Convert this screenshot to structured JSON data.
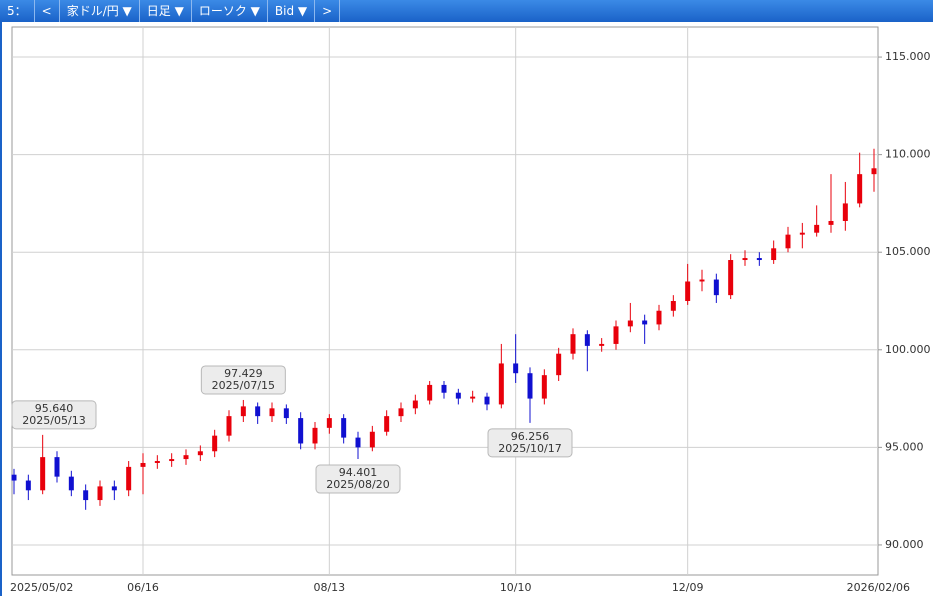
{
  "toolbar": [
    "5：",
    "<",
    "家ドル/円 ▼",
    "日足 ▼",
    "ローソク ▼",
    "Bid ▼",
    ">"
  ],
  "chart_data": {
    "type": "candlestick",
    "categories": [
      "2025/05/02",
      null,
      null,
      null,
      null,
      null,
      null,
      null,
      null,
      "06/16",
      null,
      null,
      null,
      null,
      null,
      null,
      null,
      null,
      null,
      null,
      null,
      null,
      "08/13",
      null,
      null,
      null,
      null,
      null,
      null,
      null,
      null,
      null,
      null,
      null,
      null,
      "10/10",
      null,
      null,
      null,
      null,
      null,
      null,
      null,
      null,
      null,
      null,
      null,
      "12/09",
      null,
      null,
      null,
      null,
      null,
      null,
      null,
      null,
      null,
      null,
      null,
      null,
      "2026/02/06"
    ],
    "open": [
      93.6,
      93.3,
      92.8,
      94.5,
      93.5,
      92.8,
      92.3,
      93.0,
      92.8,
      94.0,
      94.2,
      94.3,
      94.4,
      94.6,
      94.8,
      95.6,
      96.6,
      97.1,
      96.6,
      97.0,
      96.5,
      95.2,
      96.0,
      96.5,
      95.5,
      95.0,
      95.8,
      96.6,
      97.0,
      97.4,
      98.2,
      97.8,
      97.5,
      97.6,
      97.2,
      99.3,
      98.8,
      97.5,
      98.7,
      99.8,
      100.8,
      100.2,
      100.3,
      101.2,
      101.5,
      101.3,
      102.0,
      102.5,
      103.5,
      103.6,
      102.8,
      104.6,
      104.7,
      104.6,
      105.2,
      105.9,
      106.0,
      106.4,
      106.6,
      107.5,
      109.0
    ],
    "high": [
      93.9,
      93.6,
      95.64,
      94.8,
      93.8,
      93.1,
      93.3,
      93.3,
      94.3,
      94.7,
      94.6,
      94.7,
      94.9,
      95.1,
      95.9,
      96.9,
      97.429,
      97.3,
      97.3,
      97.2,
      96.8,
      96.3,
      96.7,
      96.7,
      95.8,
      96.1,
      96.9,
      97.3,
      97.7,
      98.4,
      98.4,
      98.0,
      97.9,
      97.8,
      100.3,
      100.8,
      99.1,
      99.0,
      100.1,
      101.1,
      101.0,
      100.6,
      101.5,
      102.4,
      101.8,
      102.3,
      102.8,
      104.4,
      104.1,
      103.9,
      104.9,
      105.1,
      105.0,
      105.6,
      106.3,
      106.5,
      107.4,
      109.0,
      108.6,
      110.1,
      110.3
    ],
    "low": [
      92.6,
      92.3,
      92.6,
      93.2,
      92.5,
      91.8,
      92.0,
      92.3,
      92.5,
      92.6,
      93.9,
      94.0,
      94.1,
      94.3,
      94.5,
      95.3,
      96.3,
      96.2,
      96.3,
      96.2,
      94.9,
      94.9,
      95.7,
      95.2,
      94.401,
      94.8,
      95.6,
      96.3,
      96.7,
      97.2,
      97.5,
      97.2,
      97.3,
      96.9,
      97.0,
      98.3,
      96.256,
      97.2,
      98.4,
      99.5,
      98.9,
      99.9,
      100.0,
      100.9,
      100.3,
      101.0,
      101.7,
      102.3,
      103.0,
      102.4,
      102.6,
      104.3,
      104.3,
      104.4,
      105.0,
      105.2,
      105.8,
      106.0,
      106.1,
      107.3,
      108.1
    ],
    "close": [
      93.3,
      92.8,
      94.5,
      93.5,
      92.8,
      92.3,
      93.0,
      92.8,
      94.0,
      94.2,
      94.3,
      94.4,
      94.6,
      94.8,
      95.6,
      96.6,
      97.1,
      96.6,
      97.0,
      96.5,
      95.2,
      96.0,
      96.5,
      95.5,
      95.0,
      95.8,
      96.6,
      97.0,
      97.4,
      98.2,
      97.8,
      97.5,
      97.6,
      97.2,
      99.3,
      98.8,
      97.5,
      98.7,
      99.8,
      100.8,
      100.2,
      100.3,
      101.2,
      101.5,
      101.3,
      102.0,
      102.5,
      103.5,
      103.6,
      102.8,
      104.6,
      104.7,
      104.6,
      105.2,
      105.9,
      106.0,
      106.4,
      106.6,
      107.5,
      109.0,
      109.3
    ],
    "up_color": "#e8000b",
    "down_color": "#1010d0",
    "ylim": [
      88.46,
      116.54
    ],
    "yticks": [
      {
        "value": 90,
        "label": "90.000"
      },
      {
        "value": 95,
        "label": "95.000"
      },
      {
        "value": 100,
        "label": "100.000"
      },
      {
        "value": 105,
        "label": "105.000"
      },
      {
        "value": 110,
        "label": "110.000"
      },
      {
        "value": 115,
        "label": "115.000"
      }
    ],
    "grid": true,
    "annotations": [
      {
        "value": 95.64,
        "label": "95.640",
        "date": "2025/05/13",
        "at": "high"
      },
      {
        "value": 97.429,
        "label": "97.429",
        "date": "2025/07/15",
        "at": "high"
      },
      {
        "value": 94.401,
        "label": "94.401",
        "date": "2025/08/20",
        "at": "low"
      },
      {
        "value": 96.256,
        "label": "96.256",
        "date": "2025/10/17",
        "at": "low"
      }
    ]
  }
}
